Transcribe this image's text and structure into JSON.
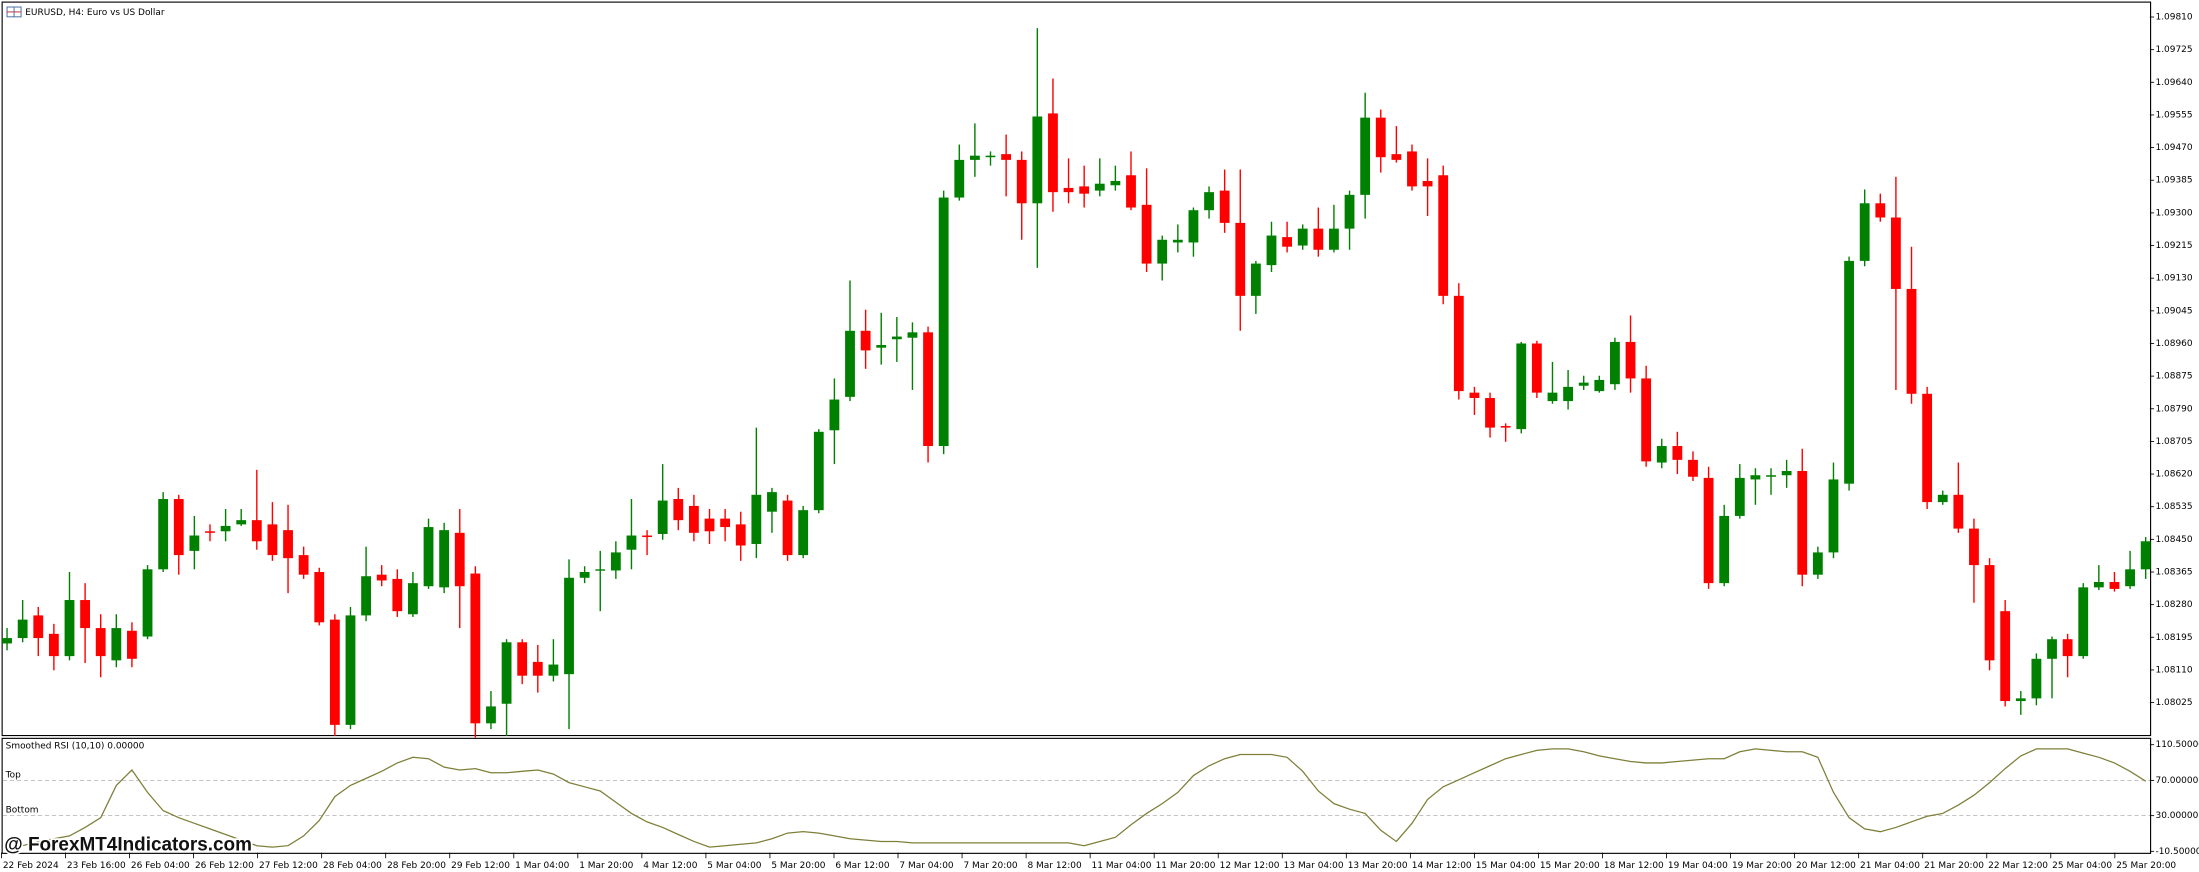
{
  "chart_data": [
    {
      "type": "candlestick",
      "title": "EURUSD, H4:  Euro vs US Dollar",
      "up_color": "#008000",
      "down_color": "#ff0000",
      "ylim": [
        1.07941,
        1.09847
      ],
      "yticks": [
        {
          "value": 1.0981,
          "label": "1.09810"
        },
        {
          "value": 1.09725,
          "label": "1.09725"
        },
        {
          "value": 1.0964,
          "label": "1.09640"
        },
        {
          "value": 1.09555,
          "label": "1.09555"
        },
        {
          "value": 1.0947,
          "label": "1.09470"
        },
        {
          "value": 1.09385,
          "label": "1.09385"
        },
        {
          "value": 1.093,
          "label": "1.09300"
        },
        {
          "value": 1.09215,
          "label": "1.09215"
        },
        {
          "value": 1.0913,
          "label": "1.09130"
        },
        {
          "value": 1.09045,
          "label": "1.09045"
        },
        {
          "value": 1.0896,
          "label": "1.08960"
        },
        {
          "value": 1.08875,
          "label": "1.08875"
        },
        {
          "value": 1.0879,
          "label": "1.08790"
        },
        {
          "value": 1.08705,
          "label": "1.08705"
        },
        {
          "value": 1.0862,
          "label": "1.08620"
        },
        {
          "value": 1.08535,
          "label": "1.08535"
        },
        {
          "value": 1.0845,
          "label": "1.08450"
        },
        {
          "value": 1.08365,
          "label": "1.08365"
        },
        {
          "value": 1.0828,
          "label": "1.08280"
        },
        {
          "value": 1.08195,
          "label": "1.08195"
        },
        {
          "value": 1.0811,
          "label": "1.08110"
        },
        {
          "value": 1.08025,
          "label": "1.08025"
        }
      ],
      "time_labels": [
        "22 Feb 2024",
        "23 Feb 16:00",
        "26 Feb 04:00",
        "26 Feb 12:00",
        "27 Feb 12:00",
        "28 Feb 04:00",
        "28 Feb 20:00",
        "29 Feb 12:00",
        "1 Mar 04:00",
        "1 Mar 20:00",
        "4 Mar 12:00",
        "5 Mar 04:00",
        "5 Mar 20:00",
        "6 Mar 12:00",
        "7 Mar 04:00",
        "7 Mar 20:00",
        "8 Mar 12:00",
        "11 Mar 04:00",
        "11 Mar 20:00",
        "12 Mar 12:00",
        "13 Mar 04:00",
        "13 Mar 20:00",
        "14 Mar 12:00",
        "15 Mar 04:00",
        "15 Mar 20:00",
        "18 Mar 12:00",
        "19 Mar 04:00",
        "19 Mar 20:00",
        "20 Mar 12:00",
        "21 Mar 04:00",
        "21 Mar 20:00",
        "22 Mar 12:00",
        "25 Mar 04:00",
        "25 Mar 20:00"
      ],
      "open": [
        1.08179,
        1.08193,
        1.08252,
        1.08204,
        1.08146,
        1.08292,
        1.08219,
        1.08135,
        1.08212,
        1.08197,
        1.08372,
        1.08555,
        1.0842,
        1.08471,
        1.08471,
        1.08489,
        1.085,
        1.08489,
        1.08474,
        1.08409,
        1.08365,
        1.08241,
        1.07967,
        1.08252,
        1.08358,
        1.08347,
        1.08255,
        1.08328,
        1.08325,
        1.08467,
        1.08361,
        1.07971,
        1.08022,
        1.08182,
        1.08131,
        1.08095,
        1.08099,
        1.0835,
        1.08372,
        1.08369,
        1.08423,
        1.0846,
        1.08464,
        1.08555,
        1.08537,
        1.08504,
        1.08504,
        1.08489,
        1.08438,
        1.08522,
        1.08551,
        1.08409,
        1.08526,
        1.08734,
        1.08821,
        1.08993,
        1.08949,
        1.08971,
        1.08975,
        1.08989,
        1.08693,
        1.0934,
        1.09438,
        1.09445,
        1.09453,
        1.09438,
        1.09325,
        1.09559,
        1.09365,
        1.09369,
        1.09358,
        1.09372,
        1.09398,
        1.09321,
        1.09168,
        1.09223,
        1.09223,
        1.09307,
        1.09358,
        1.09274,
        1.09084,
        1.09164,
        1.09237,
        1.09215,
        1.09259,
        1.09204,
        1.09259,
        1.09347,
        1.09548,
        1.09453,
        1.0946,
        1.09383,
        1.09398,
        1.09084,
        1.08832,
        1.08818,
        1.08745,
        1.08737,
        1.0896,
        1.0881,
        1.0881,
        1.0885,
        1.08836,
        1.08854,
        1.08964,
        1.08869,
        1.0865,
        1.08693,
        1.08657,
        1.0861,
        1.08336,
        1.08511,
        1.08606,
        1.08613,
        1.08617,
        1.08628,
        1.08358,
        1.08416,
        1.08595,
        1.09175,
        1.09325,
        1.09288,
        1.09102,
        1.08829,
        1.08547,
        1.08566,
        1.08478,
        1.08383,
        1.08263,
        1.08029,
        1.08036,
        1.08139,
        1.0819,
        1.08146,
        1.08325,
        1.08339,
        1.08328,
        1.08372
      ],
      "high": [
        1.08219,
        1.08292,
        1.08274,
        1.0823,
        1.08365,
        1.08336,
        1.08255,
        1.08255,
        1.08234,
        1.08383,
        1.08573,
        1.08566,
        1.08511,
        1.08489,
        1.08529,
        1.08529,
        1.08631,
        1.08547,
        1.0854,
        1.08431,
        1.08376,
        1.08255,
        1.08274,
        1.08431,
        1.08383,
        1.08372,
        1.08365,
        1.08504,
        1.08493,
        1.08529,
        1.0838,
        1.08055,
        1.0819,
        1.0819,
        1.08175,
        1.0819,
        1.08398,
        1.0838,
        1.0842,
        1.08445,
        1.08555,
        1.08474,
        1.08646,
        1.08584,
        1.08566,
        1.08529,
        1.08529,
        1.08522,
        1.08741,
        1.08584,
        1.08566,
        1.08537,
        1.08737,
        1.08869,
        1.09124,
        1.09048,
        1.0904,
        1.09029,
        1.09015,
        1.09004,
        1.09358,
        1.09478,
        1.09533,
        1.0946,
        1.09504,
        1.0946,
        1.09781,
        1.0965,
        1.09442,
        1.09423,
        1.09442,
        1.09423,
        1.0946,
        1.09416,
        1.09241,
        1.0927,
        1.09314,
        1.09369,
        1.09413,
        1.09413,
        1.09175,
        1.09277,
        1.09277,
        1.0927,
        1.09314,
        1.09321,
        1.09358,
        1.09613,
        1.09569,
        1.09526,
        1.09478,
        1.09442,
        1.09423,
        1.09117,
        1.08847,
        1.08832,
        1.08752,
        1.08964,
        1.08967,
        1.08912,
        1.08891,
        1.08876,
        1.08876,
        1.08975,
        1.09033,
        1.08902,
        1.08712,
        1.0873,
        1.08679,
        1.08639,
        1.0854,
        1.08646,
        1.08635,
        1.08635,
        1.08657,
        1.08686,
        1.08431,
        1.0865,
        1.09186,
        1.09361,
        1.0935,
        1.09394,
        1.09212,
        1.08847,
        1.08577,
        1.0865,
        1.08504,
        1.08401,
        1.08292,
        1.08055,
        1.08153,
        1.08197,
        1.08204,
        1.08336,
        1.08383,
        1.08365,
        1.0842,
        1.08456
      ],
      "low": [
        1.08161,
        1.08182,
        1.08146,
        1.08109,
        1.08135,
        1.08128,
        1.08091,
        1.08117,
        1.08117,
        1.0819,
        1.08365,
        1.08358,
        1.08372,
        1.08445,
        1.08445,
        1.08485,
        1.08423,
        1.08394,
        1.0831,
        1.08347,
        1.08226,
        1.07938,
        1.07956,
        1.08237,
        1.08328,
        1.08248,
        1.08248,
        1.08321,
        1.0831,
        1.08219,
        1.07934,
        1.07956,
        1.07938,
        1.08073,
        1.08051,
        1.0808,
        1.07956,
        1.08336,
        1.08263,
        1.08347,
        1.08372,
        1.08409,
        1.08449,
        1.08474,
        1.08445,
        1.08438,
        1.08445,
        1.08394,
        1.08401,
        1.08467,
        1.08394,
        1.08401,
        1.08518,
        1.08646,
        1.0881,
        1.08894,
        1.08905,
        1.08912,
        1.08839,
        1.0865,
        1.08672,
        1.09332,
        1.09394,
        1.09423,
        1.09343,
        1.0923,
        1.09157,
        1.09303,
        1.09325,
        1.09314,
        1.09343,
        1.09358,
        1.09307,
        1.09146,
        1.09124,
        1.09197,
        1.09186,
        1.09285,
        1.09248,
        1.08993,
        1.09037,
        1.09146,
        1.09197,
        1.09204,
        1.09186,
        1.09197,
        1.09204,
        1.09285,
        1.09405,
        1.09431,
        1.09358,
        1.09292,
        1.09062,
        1.08814,
        1.08774,
        1.08715,
        1.08704,
        1.08726,
        1.08818,
        1.08803,
        1.08788,
        1.08839,
        1.08832,
        1.08839,
        1.08832,
        1.08639,
        1.08635,
        1.0862,
        1.08602,
        1.08321,
        1.08328,
        1.08504,
        1.0854,
        1.08566,
        1.08584,
        1.08328,
        1.08347,
        1.08401,
        1.08577,
        1.09161,
        1.09277,
        1.08839,
        1.08803,
        1.08529,
        1.0854,
        1.08467,
        1.08285,
        1.08109,
        1.08015,
        1.07993,
        1.08018,
        1.08036,
        1.08091,
        1.08139,
        1.08318,
        1.08314,
        1.08321,
        1.08347
      ],
      "close": [
        1.08193,
        1.08241,
        1.08193,
        1.08146,
        1.08292,
        1.08219,
        1.08146,
        1.08219,
        1.08139,
        1.08372,
        1.08555,
        1.08409,
        1.0846,
        1.08467,
        1.08485,
        1.085,
        1.08445,
        1.08409,
        1.08401,
        1.08358,
        1.08234,
        1.07967,
        1.08252,
        1.08354,
        1.08343,
        1.08263,
        1.08336,
        1.08482,
        1.08474,
        1.08328,
        1.07971,
        1.08015,
        1.08182,
        1.08095,
        1.08095,
        1.08124,
        1.0835,
        1.08365,
        1.08372,
        1.08416,
        1.0846,
        1.08456,
        1.08551,
        1.085,
        1.08467,
        1.08471,
        1.08482,
        1.08434,
        1.08566,
        1.08573,
        1.08409,
        1.08526,
        1.0873,
        1.08814,
        1.08993,
        1.08942,
        1.08956,
        1.08978,
        1.08989,
        1.08693,
        1.0934,
        1.09438,
        1.09449,
        1.09449,
        1.09438,
        1.09325,
        1.09551,
        1.09354,
        1.09354,
        1.0935,
        1.09376,
        1.09383,
        1.09314,
        1.09168,
        1.0923,
        1.0923,
        1.09307,
        1.09354,
        1.09274,
        1.09084,
        1.09168,
        1.09241,
        1.09212,
        1.09259,
        1.09204,
        1.09259,
        1.09347,
        1.09548,
        1.09445,
        1.09438,
        1.09369,
        1.09369,
        1.09084,
        1.08836,
        1.08818,
        1.08741,
        1.08741,
        1.0896,
        1.08832,
        1.08832,
        1.08847,
        1.08858,
        1.08865,
        1.08964,
        1.08869,
        1.08653,
        1.08693,
        1.08657,
        1.08613,
        1.08336,
        1.08511,
        1.0861,
        1.08617,
        1.08617,
        1.08628,
        1.08358,
        1.08416,
        1.08606,
        1.09175,
        1.09325,
        1.09288,
        1.09102,
        1.08829,
        1.08547,
        1.08566,
        1.08478,
        1.08383,
        1.08135,
        1.08029,
        1.08036,
        1.08139,
        1.0819,
        1.08146,
        1.08325,
        1.08339,
        1.08321,
        1.08372,
        1.08445
      ]
    },
    {
      "type": "line",
      "title": "Smoothed RSI (10,10) 0.00000",
      "ylim": [
        -12,
        118.5
      ],
      "yticks": [
        {
          "value": 110.5,
          "label": "110.50000"
        },
        {
          "value": 70,
          "label": "70.00000"
        },
        {
          "value": 30,
          "label": "30.00000"
        },
        {
          "value": -10.5,
          "label": "-10.50000"
        }
      ],
      "levels": [
        {
          "value": 70,
          "label": "Top"
        },
        {
          "value": 30,
          "label": "Bottom"
        }
      ],
      "series": [
        {
          "color": "#7f7f3a",
          "values": [
            -7.3,
            -4.1,
            0.7,
            3.8,
            7.0,
            16.6,
            27.7,
            64.3,
            81.8,
            56.4,
            35.7,
            27.7,
            21.3,
            15.0,
            8.6,
            2.2,
            -4.1,
            -5.7,
            -4.1,
            7.0,
            24.5,
            51.6,
            64.3,
            72.3,
            80.3,
            89.8,
            96.2,
            94.6,
            85.0,
            81.8,
            83.4,
            78.7,
            78.7,
            80.3,
            81.8,
            77.1,
            67.5,
            62.7,
            58.0,
            45.2,
            32.5,
            22.9,
            16.6,
            8.6,
            0.7,
            -5.7,
            -4.1,
            -2.5,
            -0.9,
            3.8,
            10.2,
            11.8,
            10.2,
            7.0,
            3.8,
            2.2,
            0.7,
            0.7,
            -0.9,
            -0.9,
            -0.9,
            -0.9,
            -0.9,
            -0.9,
            -0.9,
            -0.9,
            -0.9,
            -0.9,
            -0.9,
            -4.1,
            0.7,
            5.4,
            19.7,
            32.5,
            43.6,
            56.4,
            75.5,
            86.6,
            94.6,
            99.4,
            99.4,
            99.4,
            96.2,
            80.3,
            58.0,
            43.6,
            37.3,
            32.5,
            13.4,
            0.7,
            21.3,
            48.4,
            62.7,
            70.7,
            78.7,
            86.6,
            94.6,
            99.4,
            104.1,
            105.7,
            105.7,
            102.5,
            97.8,
            94.6,
            91.4,
            89.8,
            89.8,
            91.4,
            93.0,
            94.6,
            94.6,
            102.5,
            105.7,
            104.1,
            102.5,
            102.5,
            96.2,
            56.4,
            27.7,
            15.0,
            11.8,
            16.6,
            23.0,
            29.3,
            32.5,
            42.0,
            53.2,
            67.5,
            83.4,
            97.8,
            105.7,
            105.7,
            105.7,
            100.9,
            96.2,
            89.8,
            80.3,
            69.1
          ]
        }
      ]
    }
  ],
  "watermark": "@ ForexMT4Indicators.com"
}
